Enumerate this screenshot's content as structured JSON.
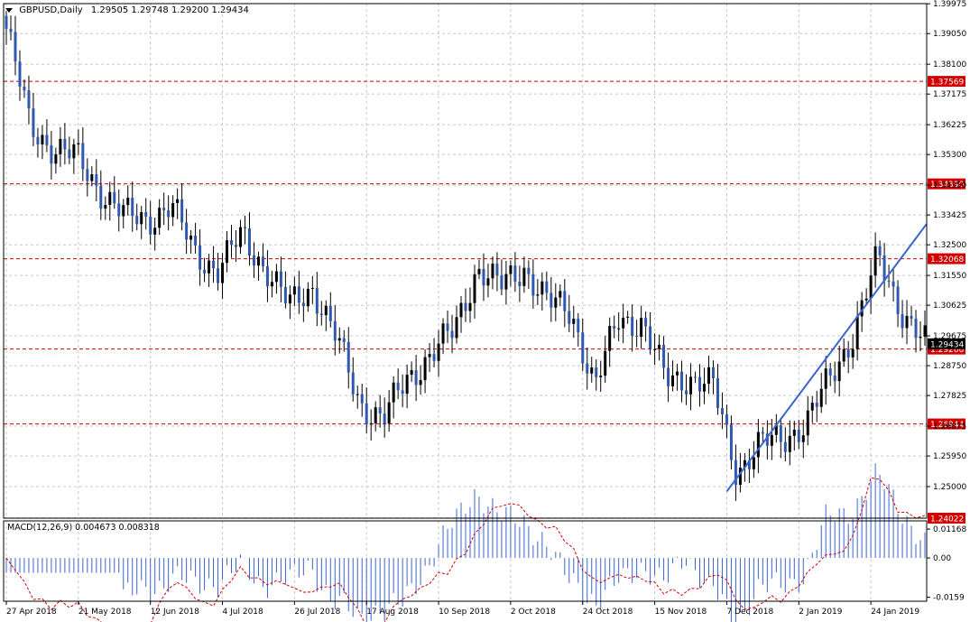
{
  "header": {
    "symbol": "GBPUSD,Daily",
    "ohlc": "1.29505 1.29748 1.29200 1.29434"
  },
  "macd": {
    "label": "MACD(12,26,9) 0.004673 0.008318",
    "ticks": [
      "0.01168",
      "0.00",
      "-0.0159"
    ],
    "tick_values": [
      0.01168,
      0.0,
      -0.0159
    ]
  },
  "colors": {
    "candle": "#2E59B3",
    "wick": "#000000",
    "level": "#D00000",
    "trendline": "#3A64D0",
    "grid": "#C8C8C8",
    "histogram": "#3A64D0",
    "signal": "#D00000"
  },
  "chart_data": {
    "type": "line",
    "title": "GBPUSD,Daily",
    "ylim": [
      1.2402,
      1.3998
    ],
    "y_ticks": [
      "1.39975",
      "1.39050",
      "1.38100",
      "1.37175",
      "1.36225",
      "1.35300",
      "1.34350",
      "1.33425",
      "1.32500",
      "1.31550",
      "1.30625",
      "1.29675",
      "1.28750",
      "1.27825",
      "1.26875",
      "1.25950",
      "1.25000"
    ],
    "y_tick_values": [
      1.39975,
      1.3905,
      1.381,
      1.37175,
      1.36225,
      1.353,
      1.3435,
      1.33425,
      1.325,
      1.3155,
      1.30625,
      1.29675,
      1.2875,
      1.27825,
      1.26875,
      1.2595,
      1.25
    ],
    "x_labels": [
      "27 Apr 2018",
      "21 May 2018",
      "12 Jun 2018",
      "4 Jul 2018",
      "26 Jul 2018",
      "17 Aug 2018",
      "10 Sep 2018",
      "2 Oct 2018",
      "24 Oct 2018",
      "15 Nov 2018",
      "7 Dec 2018",
      "2 Jan 2019",
      "24 Jan 2019"
    ],
    "x_label_bar_index": [
      0,
      16,
      32,
      48,
      64,
      80,
      96,
      112,
      128,
      144,
      160,
      176,
      192
    ],
    "levels": [
      1.37569,
      1.3439,
      1.32068,
      1.29266,
      1.26944,
      1.24022
    ],
    "level_labels": [
      "1.37569",
      "1.34390",
      "1.32068",
      "1.29266",
      "1.26944",
      "1.24022"
    ],
    "current_price_label": "1.29434",
    "series": [
      {
        "x": [
          "27 Apr 2018",
          "1 May",
          "7 May",
          "14 May",
          "21 May",
          "28 May",
          "4 Jun",
          "12 Jun",
          "18 Jun",
          "25 Jun",
          "4 Jul",
          "10 Jul",
          "17 Jul",
          "26 Jul",
          "1 Aug",
          "8 Aug",
          "17 Aug",
          "24 Aug",
          "31 Aug",
          "10 Sep",
          "17 Sep",
          "24 Sep",
          "2 Oct",
          "9 Oct",
          "16 Oct",
          "24 Oct",
          "31 Oct",
          "7 Nov",
          "15 Nov",
          "22 Nov",
          "29 Nov",
          "7 Dec",
          "14 Dec",
          "21 Dec",
          "2 Jan 2019",
          "9 Jan",
          "16 Jan",
          "24 Jan",
          "31 Jan",
          "5 Feb"
        ],
        "values": [
          1.392,
          1.362,
          1.355,
          1.352,
          1.342,
          1.334,
          1.333,
          1.337,
          1.323,
          1.317,
          1.328,
          1.318,
          1.306,
          1.312,
          1.296,
          1.276,
          1.271,
          1.283,
          1.291,
          1.298,
          1.318,
          1.312,
          1.318,
          1.307,
          1.304,
          1.281,
          1.302,
          1.301,
          1.283,
          1.284,
          1.281,
          1.255,
          1.263,
          1.265,
          1.27,
          1.284,
          1.298,
          1.321,
          1.305,
          1.2943
        ]
      }
    ],
    "trendline": {
      "from": [
        "7 Dec 2018",
        1.2485
      ],
      "to": [
        "end",
        1.3315
      ]
    }
  }
}
